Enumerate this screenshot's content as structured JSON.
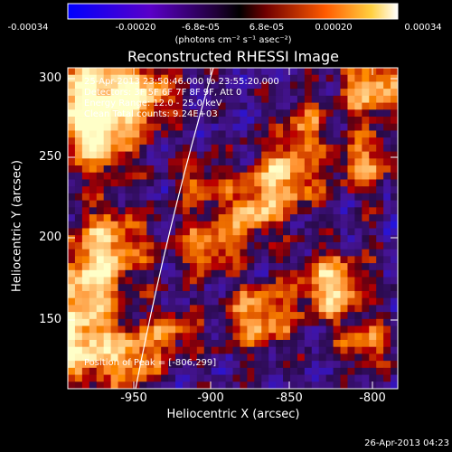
{
  "colorbar": {
    "ticks": [
      "-0.00034",
      "-0.00020",
      "-6.8e-05",
      "6.8e-05",
      "0.00020",
      "0.00034"
    ],
    "units": "(photons cm⁻² s⁻¹ asec⁻²)",
    "colors": [
      "#0000ff",
      "#5a00c8",
      "#2a0045",
      "#000000",
      "#8a0000",
      "#ff6a00",
      "#ffdc4a",
      "#ffffff"
    ]
  },
  "title": "Reconstructed RHESSI Image",
  "info": {
    "time_range": "25-Apr-2013 23:50:46.000 to 23:55:20.000",
    "detectors": "Detectors: 3F 5F 6F 7F 8F 9F, Att 0",
    "energy": "Energy Range: 12.0 - 25.0 keV",
    "clean": "Clean     Total counts: 9.24E+03",
    "peak": "Position of Peak = [-806,299]"
  },
  "x_axis": {
    "label": "Heliocentric X (arcsec)",
    "ticks": [
      "-950",
      "-900",
      "-850",
      "-800"
    ]
  },
  "y_axis": {
    "label": "Heliocentric Y (arcsec)",
    "ticks": [
      "300",
      "250",
      "200",
      "150"
    ]
  },
  "footer": {
    "timestamp": "26-Apr-2013 04:23"
  }
}
